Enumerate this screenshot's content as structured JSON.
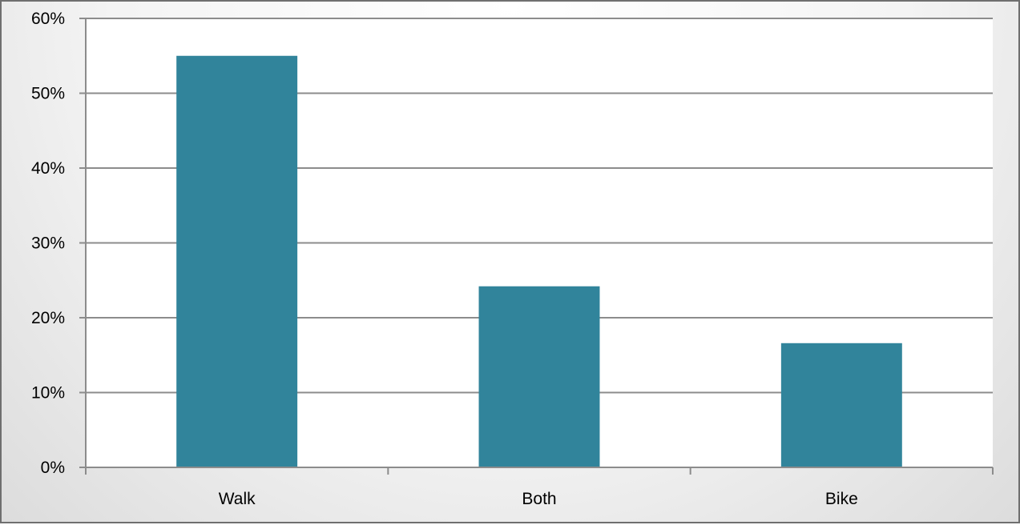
{
  "chart_data": {
    "type": "bar",
    "title": "",
    "xlabel": "",
    "ylabel": "",
    "categories": [
      "Walk",
      "Both",
      "Bike"
    ],
    "values": [
      0.55,
      0.242,
      0.166
    ],
    "ylim": [
      0,
      0.6
    ],
    "yticks": [
      0,
      0.1,
      0.2,
      0.3,
      0.4,
      0.5,
      0.6
    ],
    "ytick_labels": [
      "0%",
      "10%",
      "20%",
      "30%",
      "40%",
      "50%",
      "60%"
    ],
    "grid": true,
    "legend": "none",
    "bar_color": "#31849b",
    "gridline_color": "#8c8c8c",
    "axis_color": "#8c8c8c"
  }
}
